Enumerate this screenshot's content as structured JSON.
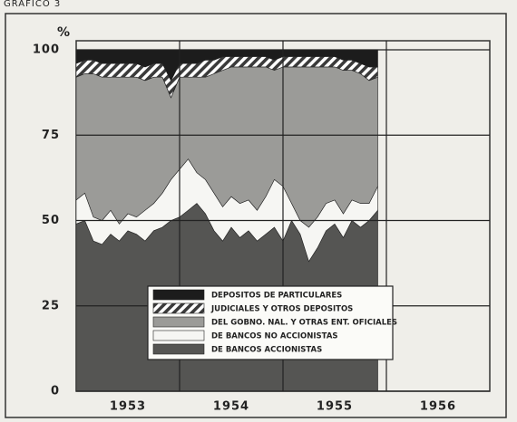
{
  "chart_data": {
    "type": "stacked-area",
    "title": "GRAFICO 3",
    "y_label": "%",
    "x": [
      1953,
      1953.083,
      1953.167,
      1953.25,
      1953.333,
      1953.417,
      1953.5,
      1953.583,
      1953.667,
      1953.75,
      1953.833,
      1953.917,
      1954,
      1954.083,
      1954.167,
      1954.25,
      1954.333,
      1954.417,
      1954.5,
      1954.583,
      1954.667,
      1954.75,
      1954.833,
      1954.917,
      1955,
      1955.083,
      1955.167,
      1955.25,
      1955.333,
      1955.417,
      1955.5,
      1955.583,
      1955.667,
      1955.75,
      1955.833,
      1955.917
    ],
    "series": [
      {
        "name": "DEPOSITOS DE PARTICULARES",
        "color": "#1c1c1c",
        "values": [
          4,
          3,
          3,
          4,
          4,
          4,
          4,
          4,
          5,
          4,
          4,
          9,
          4,
          4,
          4,
          3,
          3,
          2,
          2,
          2,
          2,
          2,
          2,
          3,
          2,
          2,
          2,
          2,
          2,
          2,
          2,
          3,
          3,
          4,
          5,
          5
        ]
      },
      {
        "name": "JUDICIALES Y OTROS DEPOSITOS",
        "color": "#3a3a3a",
        "hatch": true,
        "values": [
          4,
          4,
          4,
          4,
          4,
          4,
          4,
          4,
          4,
          4,
          4,
          5,
          4,
          4,
          4,
          5,
          4,
          4,
          3,
          3,
          3,
          3,
          3,
          3,
          3,
          3,
          3,
          3,
          3,
          3,
          3,
          3,
          3,
          3,
          4,
          3
        ]
      },
      {
        "name": "DEL GOBNO. NAL. Y OTRAS ENT. OFICIALES",
        "color": "#9b9b98",
        "values": [
          36,
          35,
          42,
          42,
          39,
          43,
          40,
          41,
          38,
          37,
          34,
          24,
          27,
          24,
          28,
          30,
          35,
          40,
          38,
          40,
          39,
          42,
          38,
          32,
          35,
          40,
          45,
          47,
          44,
          40,
          39,
          42,
          38,
          38,
          36,
          32
        ]
      },
      {
        "name": "DE BANCOS NO ACCIONISTAS",
        "color": "#f6f6f3",
        "values": [
          7,
          8,
          7,
          7,
          7,
          5,
          5,
          5,
          9,
          8,
          10,
          12,
          14,
          15,
          9,
          10,
          11,
          10,
          9,
          10,
          9,
          9,
          11,
          14,
          16,
          5,
          4,
          10,
          9,
          8,
          7,
          7,
          6,
          7,
          5,
          7
        ]
      },
      {
        "name": "DE BANCOS ACCIONISTAS",
        "color": "#555553",
        "values": [
          49,
          50,
          44,
          43,
          46,
          44,
          47,
          46,
          44,
          47,
          48,
          50,
          51,
          53,
          55,
          52,
          47,
          44,
          48,
          45,
          47,
          44,
          46,
          48,
          44,
          50,
          46,
          38,
          42,
          47,
          49,
          45,
          50,
          48,
          50,
          53
        ]
      }
    ],
    "xlim": [
      1953,
      1957
    ],
    "xticks": [
      {
        "value": 1953.5,
        "label": "1953"
      },
      {
        "value": 1954.5,
        "label": "1954"
      },
      {
        "value": 1955.5,
        "label": "1955"
      },
      {
        "value": 1956.5,
        "label": "1956"
      }
    ],
    "xgrid": [
      1954,
      1955,
      1956
    ],
    "ylim": [
      0,
      100
    ],
    "yticks": [
      0,
      25,
      50,
      75,
      100
    ],
    "grid": true
  }
}
